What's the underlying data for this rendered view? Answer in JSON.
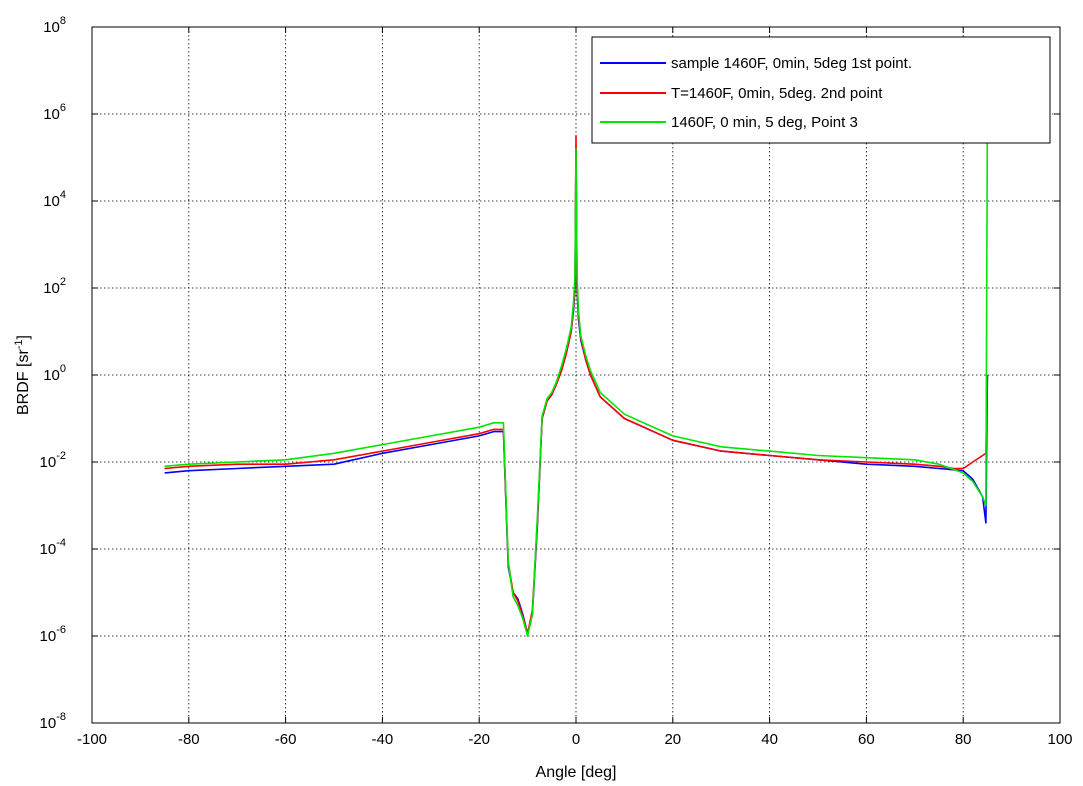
{
  "chart_data": {
    "type": "line",
    "xlabel": "Angle [deg]",
    "ylabel": "BRDF [sr",
    "ylabel_sup": "-1",
    "ylabel_end": "]",
    "xlim": [
      -100,
      100
    ],
    "ylim_log10": [
      -8,
      8
    ],
    "yscale": "log",
    "grid": true,
    "legend_position": "top-right",
    "x_ticks": [
      "-100",
      "-80",
      "-60",
      "-40",
      "-20",
      "0",
      "20",
      "40",
      "60",
      "80",
      "100"
    ],
    "y_ticks": [
      {
        "base": "10",
        "exp": "-8"
      },
      {
        "base": "10",
        "exp": "-6"
      },
      {
        "base": "10",
        "exp": "-4"
      },
      {
        "base": "10",
        "exp": "-2"
      },
      {
        "base": "10",
        "exp": "0"
      },
      {
        "base": "10",
        "exp": "2"
      },
      {
        "base": "10",
        "exp": "4"
      },
      {
        "base": "10",
        "exp": "6"
      },
      {
        "base": "10",
        "exp": "8"
      }
    ],
    "series": [
      {
        "name": "sample 1460F, 0min, 5deg 1st point.",
        "color": "#0000ff",
        "x": [
          -85,
          -80,
          -70,
          -60,
          -50,
          -40,
          -30,
          -20,
          -17,
          -15,
          -14,
          -13,
          -12,
          -11,
          -10,
          -9,
          -8,
          -7,
          -6,
          -5,
          -4,
          -3,
          -2,
          -1,
          -0.5,
          -0.2,
          0,
          0.2,
          0.5,
          1,
          2,
          3,
          5,
          10,
          20,
          30,
          40,
          50,
          60,
          70,
          75,
          80,
          82,
          84,
          84.7,
          85
        ],
        "y_log10": [
          -2.25,
          -2.2,
          -2.15,
          -2.1,
          -2.05,
          -1.8,
          -1.6,
          -1.4,
          -1.3,
          -1.3,
          -4.4,
          -5.0,
          -5.15,
          -5.5,
          -5.95,
          -5.5,
          -3.5,
          -1.0,
          -0.6,
          -0.45,
          -0.2,
          0.1,
          0.5,
          1.0,
          1.5,
          2.0,
          5.2,
          2.0,
          1.3,
          0.8,
          0.35,
          0.0,
          -0.5,
          -1.0,
          -1.5,
          -1.75,
          -1.85,
          -1.95,
          -2.05,
          -2.1,
          -2.15,
          -2.2,
          -2.4,
          -2.8,
          -3.4,
          0.0
        ]
      },
      {
        "name": "T=1460F, 0min, 5deg. 2nd point",
        "color": "#ff0000",
        "x": [
          -85,
          -80,
          -70,
          -60,
          -50,
          -40,
          -30,
          -20,
          -17,
          -15,
          -14,
          -13,
          -12,
          -11,
          -10,
          -9,
          -8,
          -7,
          -6,
          -5,
          -4,
          -3,
          -2,
          -1,
          -0.5,
          -0.2,
          0,
          0.2,
          0.5,
          1,
          2,
          3,
          5,
          10,
          20,
          30,
          40,
          50,
          60,
          70,
          75,
          78,
          80,
          82,
          84,
          84.7,
          85
        ],
        "y_log10": [
          -2.15,
          -2.1,
          -2.05,
          -2.05,
          -1.95,
          -1.75,
          -1.55,
          -1.35,
          -1.25,
          -1.25,
          -4.3,
          -5.0,
          -5.2,
          -5.55,
          -5.95,
          -5.4,
          -3.4,
          -1.0,
          -0.6,
          -0.45,
          -0.2,
          0.1,
          0.5,
          1.0,
          1.6,
          2.1,
          5.5,
          2.1,
          1.4,
          0.85,
          0.35,
          0.0,
          -0.5,
          -1.0,
          -1.5,
          -1.75,
          -1.85,
          -1.95,
          -2.0,
          -2.05,
          -2.1,
          -2.15,
          -2.15,
          -2.0,
          -1.85,
          -1.8,
          0.0
        ]
      },
      {
        "name": "1460F, 0 min, 5 deg, Point 3",
        "color": "#00e600",
        "x": [
          -85,
          -80,
          -70,
          -60,
          -50,
          -40,
          -30,
          -20,
          -17,
          -15,
          -14,
          -13,
          -12,
          -11,
          -10,
          -9,
          -8,
          -7,
          -6,
          -5,
          -4,
          -3,
          -2,
          -1,
          -0.5,
          -0.2,
          0,
          0.2,
          0.5,
          1,
          2,
          3,
          5,
          10,
          20,
          30,
          40,
          50,
          60,
          70,
          75,
          80,
          82,
          84,
          84.7,
          85
        ],
        "y_log10": [
          -2.1,
          -2.05,
          -2.0,
          -1.95,
          -1.8,
          -1.6,
          -1.4,
          -1.2,
          -1.1,
          -1.1,
          -4.3,
          -5.1,
          -5.3,
          -5.6,
          -6.0,
          -5.5,
          -3.3,
          -0.95,
          -0.55,
          -0.4,
          -0.15,
          0.2,
          0.6,
          1.1,
          1.7,
          2.3,
          5.2,
          2.3,
          1.5,
          0.9,
          0.45,
          0.1,
          -0.4,
          -0.9,
          -1.4,
          -1.65,
          -1.75,
          -1.85,
          -1.9,
          -1.95,
          -2.05,
          -2.25,
          -2.45,
          -2.8,
          -3.0,
          6.0
        ]
      }
    ]
  }
}
